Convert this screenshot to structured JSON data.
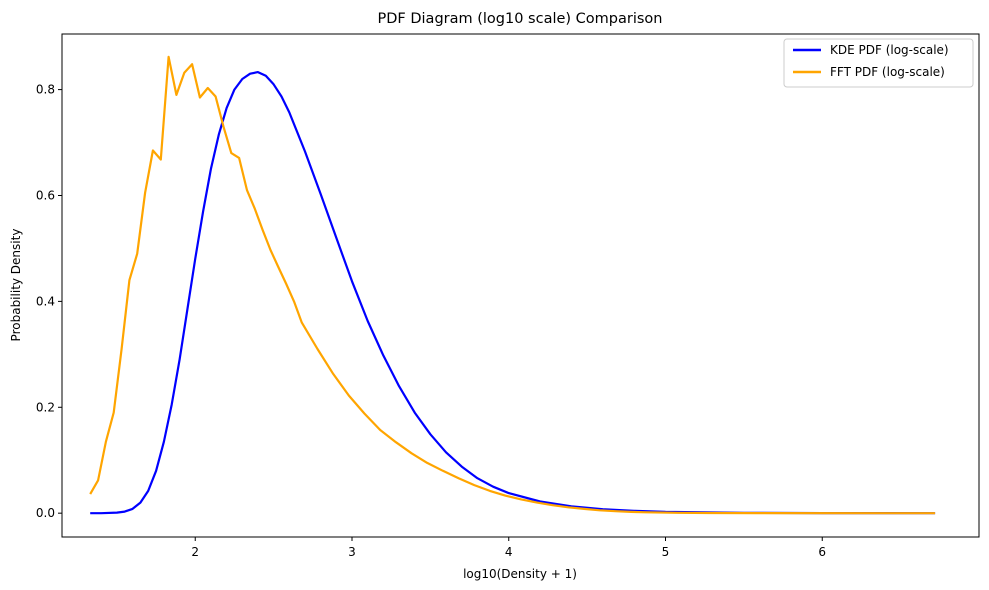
{
  "chart_data": {
    "type": "line",
    "title": "PDF Diagram (log10 scale) Comparison",
    "xlabel": "log10(Density + 1)",
    "ylabel": "Probability Density",
    "xlim": [
      1.15,
      7.0
    ],
    "ylim": [
      -0.045,
      0.905
    ],
    "xticks": [
      2,
      3,
      4,
      5,
      6
    ],
    "yticks": [
      0.0,
      0.2,
      0.4,
      0.6,
      0.8
    ],
    "xtick_labels": [
      "2",
      "3",
      "4",
      "5",
      "6"
    ],
    "ytick_labels": [
      "0.0",
      "0.2",
      "0.4",
      "0.6",
      "0.8"
    ],
    "grid": false,
    "legend_position": "top-right",
    "series": [
      {
        "name": "KDE PDF (log-scale)",
        "color": "#0000ff",
        "points": [
          [
            1.33,
            0.0
          ],
          [
            1.4,
            0.0
          ],
          [
            1.5,
            0.001
          ],
          [
            1.55,
            0.003
          ],
          [
            1.6,
            0.008
          ],
          [
            1.65,
            0.02
          ],
          [
            1.7,
            0.042
          ],
          [
            1.75,
            0.08
          ],
          [
            1.8,
            0.135
          ],
          [
            1.85,
            0.205
          ],
          [
            1.9,
            0.29
          ],
          [
            1.95,
            0.385
          ],
          [
            2.0,
            0.48
          ],
          [
            2.05,
            0.57
          ],
          [
            2.1,
            0.65
          ],
          [
            2.15,
            0.715
          ],
          [
            2.2,
            0.765
          ],
          [
            2.25,
            0.8
          ],
          [
            2.3,
            0.82
          ],
          [
            2.35,
            0.83
          ],
          [
            2.4,
            0.833
          ],
          [
            2.45,
            0.826
          ],
          [
            2.5,
            0.81
          ],
          [
            2.55,
            0.787
          ],
          [
            2.6,
            0.757
          ],
          [
            2.7,
            0.683
          ],
          [
            2.8,
            0.603
          ],
          [
            2.9,
            0.52
          ],
          [
            3.0,
            0.438
          ],
          [
            3.1,
            0.363
          ],
          [
            3.2,
            0.298
          ],
          [
            3.3,
            0.24
          ],
          [
            3.4,
            0.19
          ],
          [
            3.5,
            0.149
          ],
          [
            3.6,
            0.115
          ],
          [
            3.7,
            0.088
          ],
          [
            3.8,
            0.066
          ],
          [
            3.9,
            0.05
          ],
          [
            4.0,
            0.038
          ],
          [
            4.2,
            0.022
          ],
          [
            4.4,
            0.013
          ],
          [
            4.6,
            0.0075
          ],
          [
            4.8,
            0.0045
          ],
          [
            5.0,
            0.0025
          ],
          [
            5.5,
            0.0008
          ],
          [
            6.0,
            0.0002
          ],
          [
            6.72,
            0.0
          ]
        ]
      },
      {
        "name": "FFT PDF (log-scale)",
        "color": "#ffa500",
        "points": [
          [
            1.33,
            0.036
          ],
          [
            1.38,
            0.062
          ],
          [
            1.43,
            0.135
          ],
          [
            1.48,
            0.19
          ],
          [
            1.53,
            0.31
          ],
          [
            1.58,
            0.44
          ],
          [
            1.63,
            0.49
          ],
          [
            1.68,
            0.605
          ],
          [
            1.73,
            0.685
          ],
          [
            1.78,
            0.668
          ],
          [
            1.83,
            0.862
          ],
          [
            1.88,
            0.79
          ],
          [
            1.93,
            0.832
          ],
          [
            1.98,
            0.848
          ],
          [
            2.03,
            0.785
          ],
          [
            2.08,
            0.803
          ],
          [
            2.13,
            0.787
          ],
          [
            2.18,
            0.73
          ],
          [
            2.23,
            0.68
          ],
          [
            2.28,
            0.671
          ],
          [
            2.33,
            0.61
          ],
          [
            2.38,
            0.575
          ],
          [
            2.43,
            0.535
          ],
          [
            2.48,
            0.497
          ],
          [
            2.53,
            0.465
          ],
          [
            2.58,
            0.433
          ],
          [
            2.63,
            0.4
          ],
          [
            2.68,
            0.36
          ],
          [
            2.78,
            0.31
          ],
          [
            2.88,
            0.263
          ],
          [
            2.98,
            0.222
          ],
          [
            3.08,
            0.188
          ],
          [
            3.18,
            0.157
          ],
          [
            3.28,
            0.134
          ],
          [
            3.38,
            0.113
          ],
          [
            3.48,
            0.095
          ],
          [
            3.58,
            0.08
          ],
          [
            3.68,
            0.066
          ],
          [
            3.78,
            0.053
          ],
          [
            3.88,
            0.042
          ],
          [
            3.98,
            0.033
          ],
          [
            4.08,
            0.026
          ],
          [
            4.18,
            0.02
          ],
          [
            4.28,
            0.015
          ],
          [
            4.38,
            0.011
          ],
          [
            4.48,
            0.008
          ],
          [
            4.58,
            0.0055
          ],
          [
            4.68,
            0.0038
          ],
          [
            4.78,
            0.0025
          ],
          [
            4.88,
            0.0016
          ],
          [
            5.08,
            0.0007
          ],
          [
            5.28,
            0.0003
          ],
          [
            5.58,
            0.0001
          ],
          [
            6.72,
            0.0
          ]
        ]
      }
    ]
  }
}
